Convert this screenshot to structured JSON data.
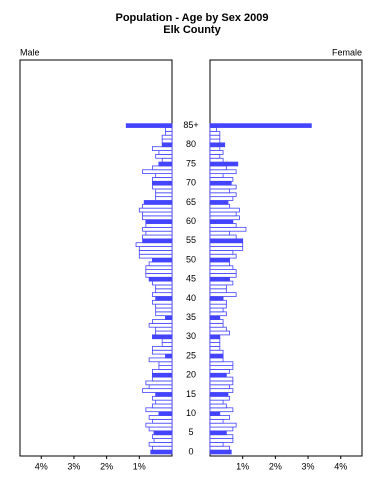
{
  "chart_data": {
    "type": "pyramid",
    "title": "Population - Age by Sex 2009",
    "subtitle": "Elk County",
    "categories": [
      "0",
      null,
      null,
      null,
      null,
      "5",
      null,
      null,
      null,
      null,
      "10",
      null,
      null,
      null,
      null,
      "15",
      null,
      null,
      null,
      null,
      "20",
      null,
      null,
      null,
      null,
      "25",
      null,
      null,
      null,
      null,
      "30",
      null,
      null,
      null,
      null,
      "35",
      null,
      null,
      null,
      null,
      "40",
      null,
      null,
      null,
      null,
      "45",
      null,
      null,
      null,
      null,
      "50",
      null,
      null,
      null,
      null,
      "55",
      null,
      null,
      null,
      null,
      "60",
      null,
      null,
      null,
      null,
      "65",
      null,
      null,
      null,
      null,
      "70",
      null,
      null,
      null,
      null,
      "75",
      null,
      null,
      null,
      null,
      "80",
      null,
      null,
      null,
      null,
      "85+"
    ],
    "series": [
      {
        "name": "Male",
        "color": "#4444ff",
        "values": [
          0.65,
          0.6,
          0.7,
          0.55,
          0.6,
          0.55,
          0.7,
          0.8,
          0.6,
          0.7,
          0.4,
          0.8,
          0.6,
          0.5,
          0.6,
          0.5,
          0.9,
          0.7,
          0.8,
          0.6,
          0.6,
          0.6,
          0.4,
          0.4,
          0.7,
          0.2,
          0.6,
          0.6,
          0.3,
          0.3,
          0.6,
          0.5,
          0.5,
          0.7,
          0.6,
          0.2,
          0.5,
          0.5,
          0.5,
          0.6,
          0.5,
          0.6,
          0.5,
          0.5,
          0.6,
          0.7,
          0.8,
          0.8,
          0.8,
          0.7,
          0.6,
          1.0,
          1.0,
          1.0,
          1.1,
          0.9,
          0.9,
          0.8,
          0.9,
          0.8,
          0.8,
          0.9,
          0.9,
          1.0,
          0.9,
          0.85,
          0.5,
          0.5,
          0.5,
          0.6,
          0.6,
          0.6,
          0.5,
          0.9,
          0.6,
          0.4,
          0.3,
          0.5,
          0.4,
          0.6,
          0.3,
          0.3,
          0.3,
          0.2,
          0.2,
          1.4
        ]
      },
      {
        "name": "Female",
        "color": "#4444ff",
        "values": [
          0.65,
          0.6,
          0.4,
          0.7,
          0.7,
          0.5,
          0.7,
          0.8,
          0.4,
          0.6,
          0.3,
          0.7,
          0.5,
          0.4,
          0.6,
          0.55,
          0.7,
          0.6,
          0.7,
          0.7,
          0.5,
          0.6,
          0.7,
          0.7,
          0.4,
          0.4,
          0.4,
          0.3,
          0.3,
          0.3,
          0.3,
          0.6,
          0.5,
          0.4,
          0.4,
          0.3,
          0.5,
          0.4,
          0.5,
          0.5,
          0.4,
          0.8,
          0.5,
          0.5,
          0.7,
          0.6,
          0.8,
          0.8,
          0.7,
          0.6,
          0.6,
          0.8,
          0.7,
          1.0,
          1.0,
          1.0,
          0.8,
          0.6,
          1.1,
          0.8,
          0.7,
          0.9,
          0.8,
          0.9,
          0.6,
          0.55,
          0.7,
          0.8,
          0.6,
          0.8,
          0.65,
          0.7,
          0.4,
          0.8,
          0.5,
          0.85,
          0.4,
          0.3,
          0.4,
          0.3,
          0.45,
          0.3,
          0.3,
          0.3,
          0.2,
          3.1
        ]
      }
    ],
    "xlim": [
      0,
      4.65
    ],
    "xticks": [
      {
        "value": 1,
        "label": "1%"
      },
      {
        "value": 2,
        "label": "2%"
      },
      {
        "value": 3,
        "label": "3%"
      },
      {
        "value": 4,
        "label": "4%"
      }
    ]
  }
}
